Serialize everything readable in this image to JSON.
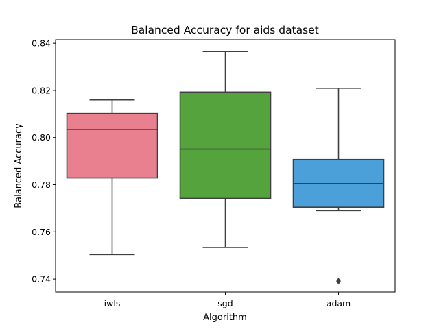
{
  "chart_data": {
    "type": "boxplot",
    "title": "Balanced Accuracy for aids dataset",
    "xlabel": "Algorithm",
    "ylabel": "Balanced Accuracy",
    "ylim": [
      0.7345,
      0.8415
    ],
    "yticks": [
      0.74,
      0.76,
      0.78,
      0.8,
      0.82,
      0.84
    ],
    "ytick_labels": [
      "0.74",
      "0.76",
      "0.78",
      "0.80",
      "0.82",
      "0.84"
    ],
    "categories": [
      "iwls",
      "sgd",
      "adam"
    ],
    "boxes": [
      {
        "category": "iwls",
        "whisker_low": 0.7504,
        "q1": 0.7829,
        "median": 0.8034,
        "q3": 0.8102,
        "whisker_high": 0.816,
        "outliers": [],
        "color": "#e8808f"
      },
      {
        "category": "sgd",
        "whisker_low": 0.7534,
        "q1": 0.7742,
        "median": 0.7951,
        "q3": 0.8193,
        "whisker_high": 0.8365,
        "outliers": [],
        "color": "#55a33c"
      },
      {
        "category": "adam",
        "whisker_low": 0.769,
        "q1": 0.7705,
        "median": 0.7805,
        "q3": 0.7907,
        "whisker_high": 0.8209,
        "outliers": [
          0.7391
        ],
        "color": "#4ca0da"
      }
    ],
    "line_color": "#3f3f3f",
    "grid": false,
    "legend": "none"
  }
}
